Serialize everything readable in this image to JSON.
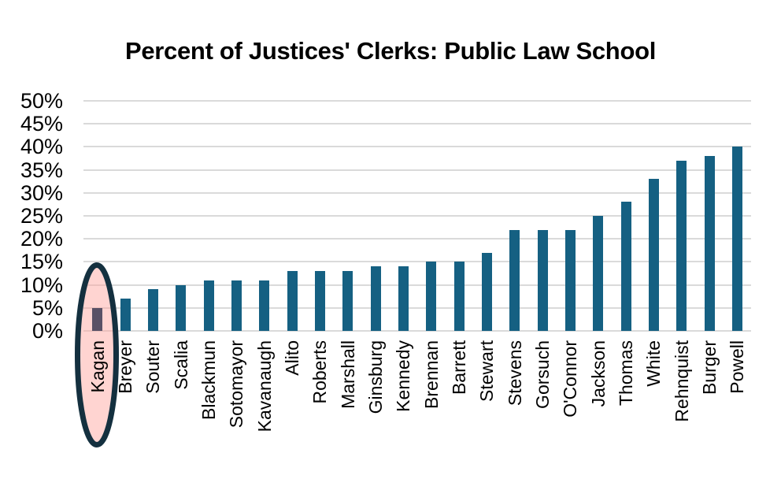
{
  "title": "Percent of Justices' Clerks: Public Law School",
  "chart_data": {
    "type": "bar",
    "title": "Percent of Justices' Clerks: Public Law School",
    "xlabel": "",
    "ylabel": "",
    "categories": [
      "Kagan",
      "Breyer",
      "Souter",
      "Scalia",
      "Blackmun",
      "Sotomayor",
      "Kavanaugh",
      "Alito",
      "Roberts",
      "Marshall",
      "Ginsburg",
      "Kennedy",
      "Brennan",
      "Barrett",
      "Stewart",
      "Stevens",
      "Gorsuch",
      "O'Connor",
      "Jackson",
      "Thomas",
      "White",
      "Rehnquist",
      "Burger",
      "Powell"
    ],
    "values": [
      5,
      7,
      9,
      10,
      11,
      11,
      11,
      13,
      13,
      13,
      14,
      14,
      15,
      15,
      17,
      22,
      22,
      22,
      25,
      28,
      33,
      37,
      38,
      40
    ],
    "unit": "%",
    "ylim": [
      0,
      50
    ],
    "ytick_step": 5,
    "ytick_labels": [
      "50%",
      "45%",
      "40%",
      "35%",
      "30%",
      "25%",
      "20%",
      "15%",
      "10%",
      "5%",
      "0%"
    ],
    "grid": true,
    "legend": "none",
    "bar_color": "#156082",
    "gridline_color": "#dadada",
    "text_color": "#000000",
    "background_color": "#ffffff",
    "highlight": {
      "category": "Kagan",
      "index": 0,
      "bar_color": "#595166",
      "ellipse_stroke_color": "#14303f",
      "ellipse_fill_color": "rgba(255,160,152,0.45)",
      "note": "hand-drawn ellipse circling the Kagan bar and axis label"
    }
  }
}
